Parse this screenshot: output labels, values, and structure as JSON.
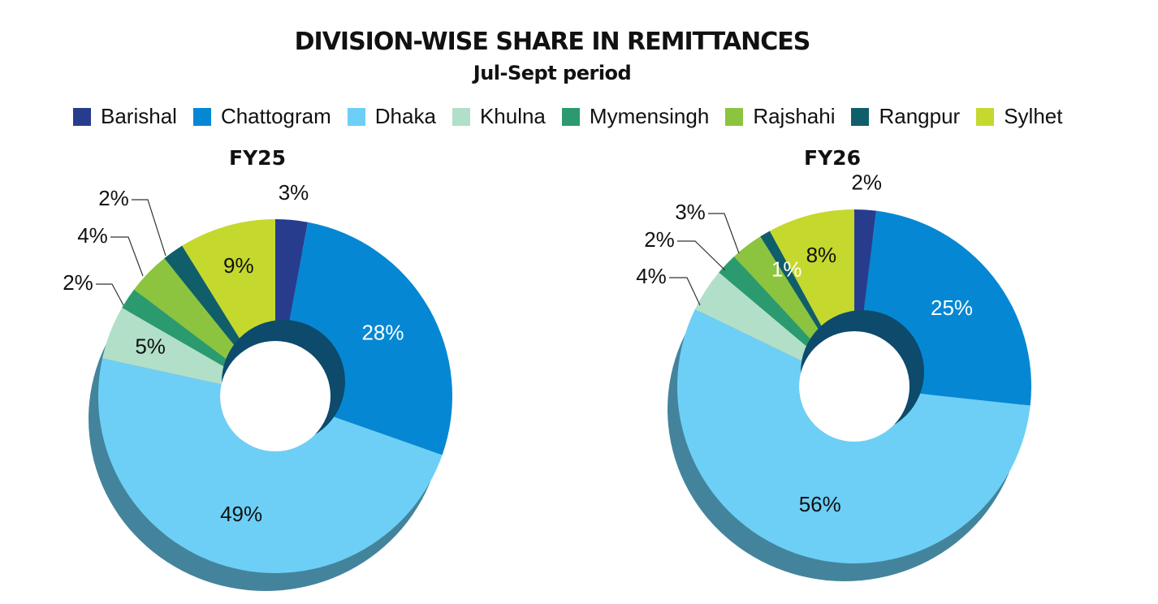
{
  "title": "DIVISION-WISE SHARE IN REMITTANCES",
  "subtitle": "Jul-Sept period",
  "colors": {
    "Barishal": "#283c8e",
    "Chattogram": "#0687d3",
    "Dhaka": "#6dcff6",
    "Khulna": "#b2dfc7",
    "Mymensingh": "#2b9a6f",
    "Rajshahi": "#8cc43f",
    "Rangpur": "#105e6a",
    "Sylhet": "#c5d82e",
    "shadow": "#43849c"
  },
  "chart_data": [
    {
      "type": "pie",
      "title": "FY25",
      "categories": [
        "Barishal",
        "Chattogram",
        "Dhaka",
        "Khulna",
        "Mymensingh",
        "Rajshahi",
        "Rangpur",
        "Sylhet"
      ],
      "values": [
        3,
        28,
        49,
        5,
        2,
        4,
        2,
        9
      ],
      "labels": [
        "3%",
        "28%",
        "49%",
        "5%",
        "2%",
        "4%",
        "2%",
        "9%"
      ],
      "legend": "top"
    },
    {
      "type": "pie",
      "title": "FY26",
      "categories": [
        "Barishal",
        "Chattogram",
        "Dhaka",
        "Khulna",
        "Mymensingh",
        "Rajshahi",
        "Rangpur",
        "Sylhet"
      ],
      "values": [
        2,
        25,
        56,
        4,
        2,
        3,
        1,
        8
      ],
      "labels": [
        "2%",
        "25%",
        "56%",
        "4%",
        "2%",
        "3%",
        "1%",
        "8%"
      ],
      "legend": "top"
    }
  ]
}
